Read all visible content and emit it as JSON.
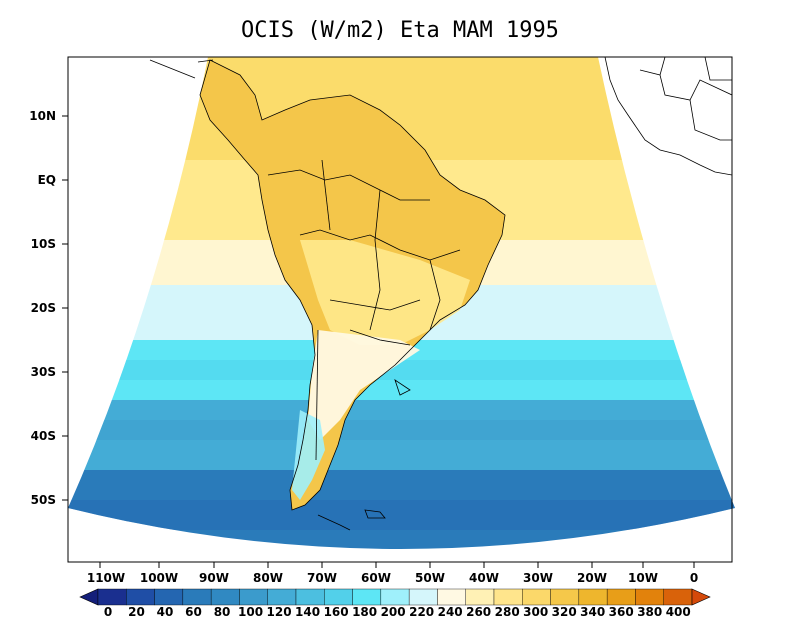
{
  "title": "OCIS (W/m2) Eta MAM 1995",
  "lat_labels": [
    "10N",
    "EQ",
    "10S",
    "20S",
    "30S",
    "40S",
    "50S"
  ],
  "lon_labels": [
    "110W",
    "100W",
    "90W",
    "80W",
    "70W",
    "60W",
    "50W",
    "40W",
    "30W",
    "20W",
    "10W",
    "0"
  ],
  "colorbar": {
    "levels": [
      "0",
      "20",
      "40",
      "60",
      "80",
      "100",
      "120",
      "140",
      "160",
      "180",
      "200",
      "220",
      "240",
      "260",
      "280",
      "300",
      "320",
      "340",
      "360",
      "380",
      "400"
    ],
    "colors": [
      "#1a2f8f",
      "#1f4ea6",
      "#2466b1",
      "#2a7bba",
      "#3089c2",
      "#3b9bcc",
      "#44acd6",
      "#4cbfe0",
      "#52d0ea",
      "#5de6f5",
      "#9ff0fb",
      "#d5f6fb",
      "#fff9e3",
      "#fff1b5",
      "#ffe58c",
      "#fbd86a",
      "#f5c84a",
      "#eeb62d",
      "#e89e18",
      "#e2820c",
      "#d9620a"
    ],
    "under_color": "#141f7a",
    "over_color": "#d4490a"
  },
  "field_colors": {
    "land": "#f4c64a",
    "ocean_north": "#fbdc6b",
    "ocean_tropic": "#ffe98d",
    "ocean_subtropic": "#fff6d1",
    "ocean_20s": "#d5f6fb",
    "ocean_30s": "#5de6f5",
    "ocean_40s": "#44acd6",
    "ocean_50s": "#2a7bba"
  }
}
